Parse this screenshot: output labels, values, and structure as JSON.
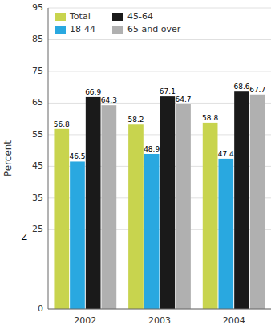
{
  "chart_data": {
    "type": "bar",
    "categories": [
      "2002",
      "2003",
      "2004"
    ],
    "series": [
      {
        "name": "Total",
        "color": "#c8d44e",
        "values": [
          56.8,
          58.2,
          58.8
        ]
      },
      {
        "name": "18-44",
        "color": "#29a8e0",
        "values": [
          46.5,
          48.9,
          47.4
        ]
      },
      {
        "name": "45-64",
        "color": "#1a1a1a",
        "values": [
          66.9,
          67.1,
          68.6
        ]
      },
      {
        "name": "65 and over",
        "color": "#b0b0b0",
        "values": [
          64.3,
          64.7,
          67.7
        ]
      }
    ],
    "y_label": "Percent",
    "ylim": [
      0,
      95
    ],
    "yticks": [
      0,
      25,
      35,
      45,
      55,
      65,
      75,
      85,
      95
    ],
    "annotations": [
      {
        "text": "Z",
        "y": 22.5
      }
    ],
    "grid": true,
    "legend": "upper left",
    "data_labels": true
  }
}
